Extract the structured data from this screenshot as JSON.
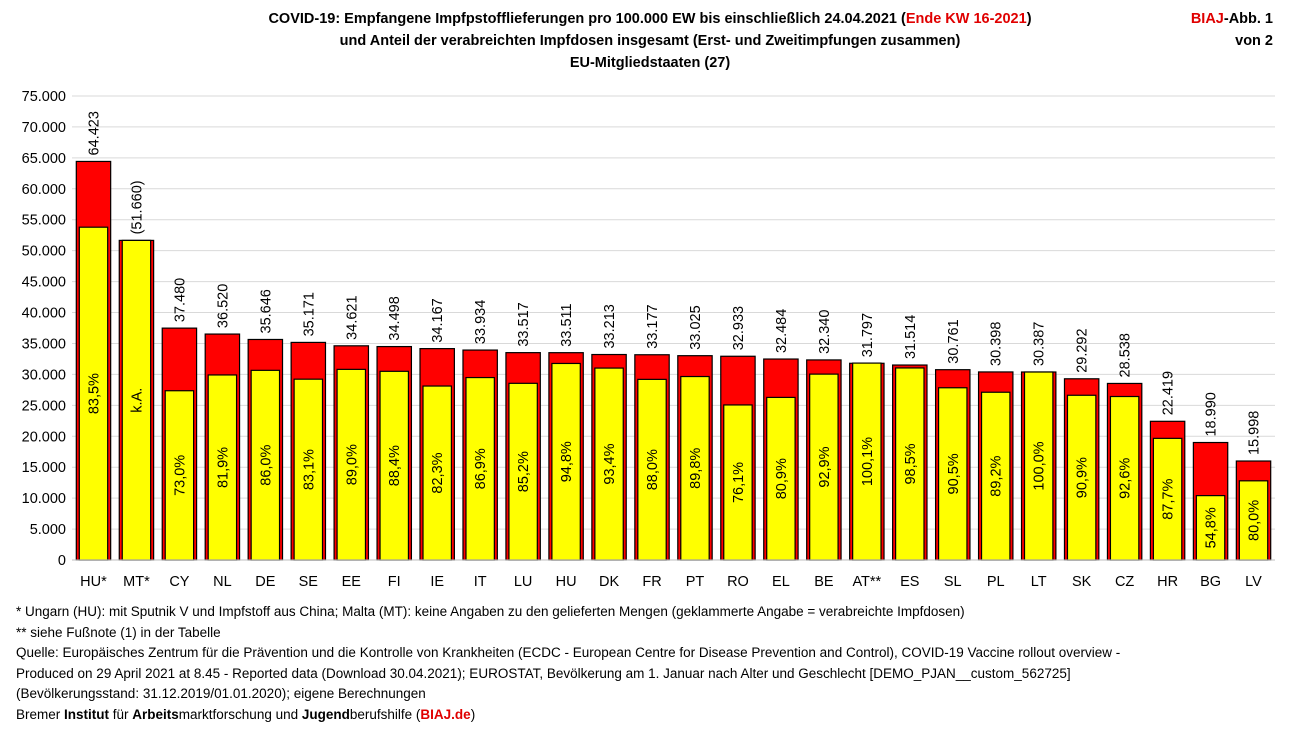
{
  "header": {
    "title_line1_a": "COVID-19: Empfangene Impfpstofflieferungen pro 100.000 EW bis einschließlich 24.04.2021 (",
    "title_line1_red": "Ende KW 16-2021",
    "title_line1_b": ")",
    "title_line2": "und Anteil der verabreichten Impfdosen insgesamt (Erst- und Zweitimpfungen zusammen)",
    "title_line3": "EU-Mitgliedstaaten (27)",
    "abb_red": "BIAJ",
    "abb_rest": "-Abb. 1",
    "abb_line2": "von 2"
  },
  "chart_data": {
    "type": "bar",
    "ylim": [
      0,
      75000
    ],
    "y_ticks": [
      "0",
      "5.000",
      "10.000",
      "15.000",
      "20.000",
      "25.000",
      "30.000",
      "35.000",
      "40.000",
      "45.000",
      "50.000",
      "55.000",
      "60.000",
      "65.000",
      "70.000",
      "75.000"
    ],
    "grid": true,
    "categories": [
      "HU*",
      "MT*",
      "CY",
      "NL",
      "DE",
      "SE",
      "EE",
      "FI",
      "IE",
      "IT",
      "LU",
      "HU",
      "DK",
      "FR",
      "PT",
      "RO",
      "EL",
      "BE",
      "AT**",
      "ES",
      "SL",
      "PL",
      "LT",
      "SK",
      "CZ",
      "HR",
      "BG",
      "LV"
    ],
    "series": [
      {
        "values": [
          64423,
          51660,
          37480,
          36520,
          35646,
          35171,
          34621,
          34498,
          34167,
          33934,
          33517,
          33511,
          33213,
          33177,
          33025,
          32933,
          32484,
          32340,
          31797,
          31514,
          30761,
          30398,
          30387,
          29292,
          28538,
          22419,
          18990,
          15998
        ],
        "labels": [
          "64.423",
          "(51.660)",
          "37.480",
          "36.520",
          "35.646",
          "35.171",
          "34.621",
          "34.498",
          "34.167",
          "33.934",
          "33.517",
          "33.511",
          "33.213",
          "33.177",
          "33.025",
          "32.933",
          "32.484",
          "32.340",
          "31.797",
          "31.514",
          "30.761",
          "30.398",
          "30.387",
          "29.292",
          "28.538",
          "22.419",
          "18.990",
          "15.998"
        ],
        "color": "#ff0000"
      },
      {
        "values": [
          53793,
          51660,
          27360,
          29910,
          30656,
          29227,
          30813,
          30496,
          28119,
          29489,
          28556,
          31768,
          31021,
          29196,
          29656,
          25062,
          26280,
          30044,
          31829,
          31041,
          27839,
          27115,
          30387,
          26626,
          26426,
          19661,
          10407,
          12798
        ],
        "labels": [
          "83,5%",
          "k.A.",
          "73,0%",
          "81,9%",
          "86,0%",
          "83,1%",
          "89,0%",
          "88,4%",
          "82,3%",
          "86,9%",
          "85,2%",
          "94,8%",
          "93,4%",
          "88,0%",
          "89,8%",
          "76,1%",
          "80,9%",
          "92,9%",
          "100,1%",
          "98,5%",
          "90,5%",
          "89,2%",
          "100,0%",
          "90,9%",
          "92,6%",
          "87,7%",
          "54,8%",
          "80,0%"
        ],
        "color": "#ffff00"
      }
    ]
  },
  "footnotes": {
    "note1": "*   Ungarn (HU): mit Sputnik V und Impfstoff aus China; Malta (MT): keine Angaben zu den gelieferten Mengen (geklammerte Angabe = verabreichte Impfdosen)",
    "note2": "** siehe Fußnote (1) in der Tabelle",
    "source1": "Quelle: Europäisches Zentrum für die Prävention und die Kontrolle von Krankheiten (ECDC - European Centre for Disease Prevention and Control), COVID-19 Vaccine rollout overview -",
    "source2": "Produced on 29 April 2021 at 8.45 - Reported data (Download 30.04.2021); EUROSTAT, Bevölkerung am 1. Januar nach Alter und Geschlecht [DEMO_PJAN__custom_562725]",
    "source3": "(Bevölkerungsstand: 31.12.2019/01.01.2020); eigene Berechnungen",
    "org_a": "Bremer ",
    "org_b": "Institut",
    "org_c": " für ",
    "org_d": "Arbeits",
    "org_e": "marktforschung und ",
    "org_f": "Jugend",
    "org_g": "berufshilfe (",
    "org_link": "BIAJ.de",
    "org_h": ")"
  }
}
